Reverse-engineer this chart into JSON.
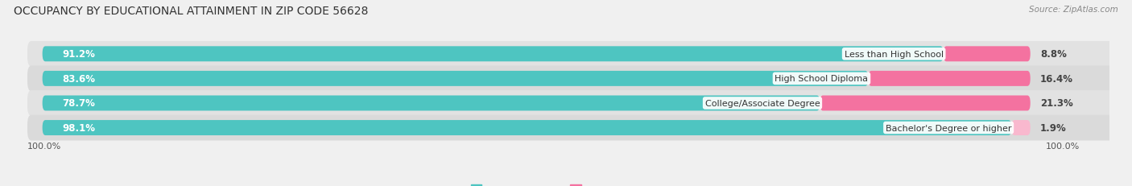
{
  "title": "OCCUPANCY BY EDUCATIONAL ATTAINMENT IN ZIP CODE 56628",
  "source": "Source: ZipAtlas.com",
  "categories": [
    "Less than High School",
    "High School Diploma",
    "College/Associate Degree",
    "Bachelor's Degree or higher"
  ],
  "owner_values": [
    91.2,
    83.6,
    78.7,
    98.1
  ],
  "renter_values": [
    8.8,
    16.4,
    21.3,
    1.9
  ],
  "owner_color": "#4ec5c1",
  "renter_color": "#f472a0",
  "renter_color_light": "#f9b8ce",
  "row_bg_color_odd": "#e8e8e8",
  "row_bg_color_even": "#d8d8d8",
  "title_fontsize": 10,
  "label_fontsize": 8.5,
  "tick_fontsize": 8,
  "source_fontsize": 7.5,
  "legend_fontsize": 8,
  "bar_height": 0.62,
  "left_pct_label": "100.0%",
  "right_pct_label": "100.0%",
  "background_color": "#f0f0f0"
}
